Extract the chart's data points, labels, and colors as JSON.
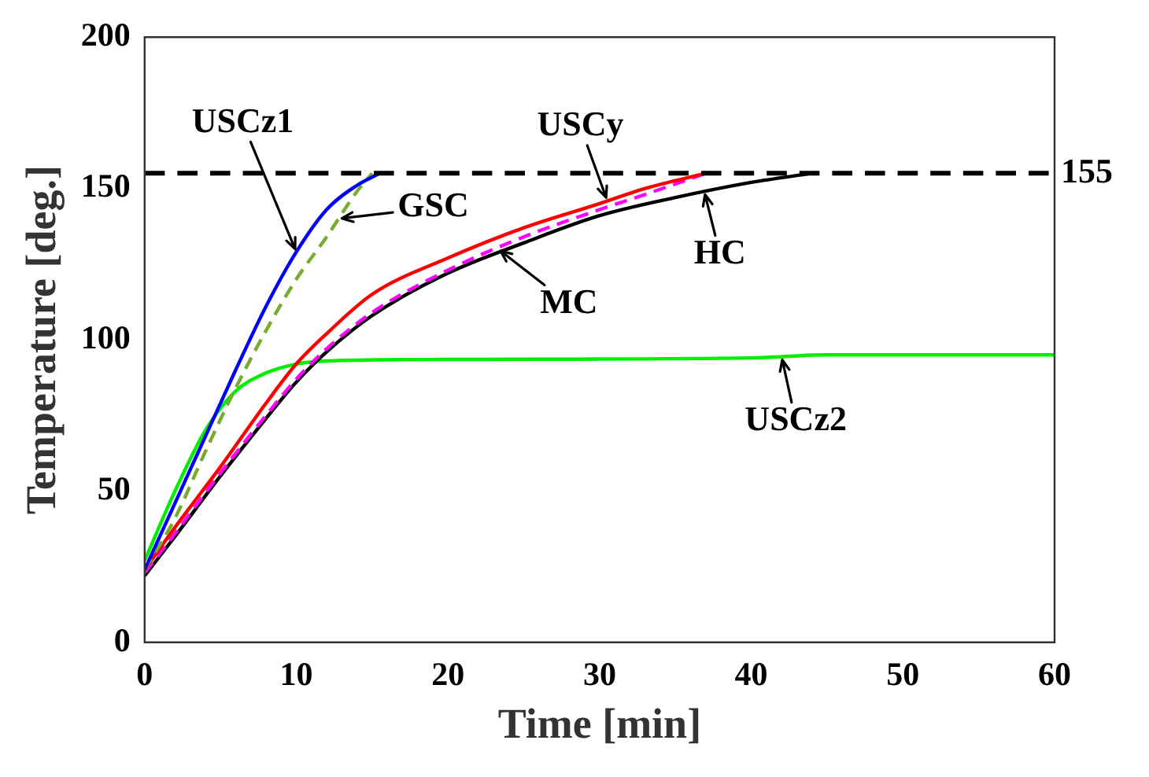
{
  "chart_data": {
    "type": "line",
    "xlabel": "Time [min]",
    "ylabel": "Temperature [deg.]",
    "xlim": [
      0,
      60
    ],
    "xticks": [
      0,
      10,
      20,
      30,
      40,
      50,
      60
    ],
    "ylim": [
      0,
      200
    ],
    "yticks": [
      0,
      50,
      100,
      150,
      200
    ],
    "grid": false,
    "legend": false,
    "marker": "none",
    "series": [
      {
        "color": "#0000ff",
        "x": [
          0,
          2,
          4,
          6,
          8,
          10,
          12,
          14,
          15.5
        ],
        "values": [
          24,
          46,
          68,
          90,
          111,
          129,
          143,
          151,
          155
        ]
      },
      {
        "color": "#77ac30",
        "line_style": "dashed",
        "x": [
          0,
          2,
          4,
          6,
          8,
          10,
          12,
          14,
          15
        ],
        "values": [
          24,
          41,
          63,
          84,
          103,
          120,
          134,
          149,
          155
        ]
      },
      {
        "color": "#ff0000",
        "x": [
          0,
          2,
          5,
          8,
          10,
          12,
          15,
          20,
          25,
          30,
          33,
          37
        ],
        "values": [
          24,
          38,
          58,
          79,
          92,
          102,
          115,
          127,
          137,
          145,
          150,
          155
        ]
      },
      {
        "color": "#ff00ff",
        "line_style": "dashed",
        "x": [
          0,
          2,
          5,
          8,
          10,
          12,
          15,
          20,
          25,
          30,
          33,
          37
        ],
        "values": [
          23,
          36,
          56,
          75,
          87,
          97,
          109,
          123,
          134,
          143,
          148,
          155
        ]
      },
      {
        "color": "#000000",
        "x": [
          0,
          2,
          5,
          8,
          10,
          12,
          15,
          20,
          25,
          30,
          35,
          40,
          44
        ],
        "values": [
          22,
          35,
          55,
          74,
          86,
          96,
          108,
          122,
          132,
          141,
          147,
          152,
          155
        ]
      },
      {
        "color": "#00ee00",
        "x": [
          0,
          2,
          4,
          6,
          8,
          10,
          12,
          20,
          40,
          45,
          60
        ],
        "values": [
          27,
          50,
          70,
          83,
          89,
          92,
          93,
          93.5,
          94,
          95,
          95
        ]
      }
    ],
    "ref_lines": [
      {
        "axis": "y",
        "value": 155,
        "label": "155",
        "color": "#000000",
        "line_style": "dashed"
      }
    ],
    "annotations": [
      {
        "text": "USCz1",
        "x": 10,
        "y": 129
      },
      {
        "text": "GSC",
        "x": 12.8,
        "y": 140
      },
      {
        "text": "USCy",
        "x": 30.5,
        "y": 146
      },
      {
        "text": "MC",
        "x": 23.3,
        "y": 130
      },
      {
        "text": "HC",
        "x": 36.9,
        "y": 149
      },
      {
        "text": "USCz2",
        "x": 42,
        "y": 94.4
      }
    ]
  }
}
